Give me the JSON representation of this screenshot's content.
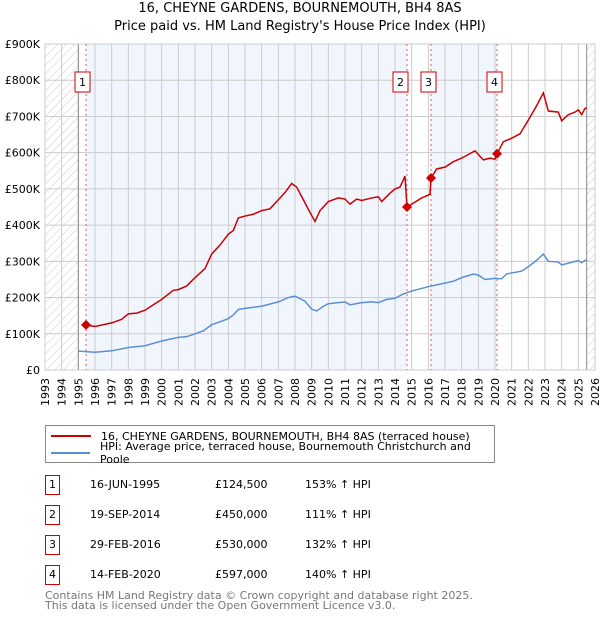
{
  "title": "16, CHEYNE GARDENS, BOURNEMOUTH, BH4 8AS",
  "subtitle": "Price paid vs. HM Land Registry's House Price Index (HPI)",
  "chart_data": {
    "type": "line",
    "xlim": [
      1993,
      2026
    ],
    "ylim": [
      0,
      900000
    ],
    "x_ticks": [
      "1993",
      "1994",
      "1995",
      "1996",
      "1997",
      "1998",
      "1999",
      "2000",
      "2001",
      "2002",
      "2003",
      "2004",
      "2005",
      "2006",
      "2007",
      "2008",
      "2009",
      "2010",
      "2011",
      "2012",
      "2013",
      "2014",
      "2015",
      "2016",
      "2017",
      "2018",
      "2019",
      "2020",
      "2021",
      "2022",
      "2023",
      "2024",
      "2025",
      "2026"
    ],
    "y_ticks": [
      {
        "v": 0,
        "label": "£0"
      },
      {
        "v": 100000,
        "label": "£100K"
      },
      {
        "v": 200000,
        "label": "£200K"
      },
      {
        "v": 300000,
        "label": "£300K"
      },
      {
        "v": 400000,
        "label": "£400K"
      },
      {
        "v": 500000,
        "label": "£500K"
      },
      {
        "v": 600000,
        "label": "£600K"
      },
      {
        "v": 700000,
        "label": "£700K"
      },
      {
        "v": 800000,
        "label": "£800K"
      },
      {
        "v": 900000,
        "label": "£900K"
      }
    ],
    "grid": true,
    "hatched_ranges": [
      [
        1993,
        1995.0
      ],
      [
        2025.5,
        2026
      ]
    ],
    "shaded_ranges": [
      [
        1995.46,
        2014.72
      ],
      [
        2016.16,
        2020.12
      ]
    ],
    "series": [
      {
        "name": "16, CHEYNE GARDENS, BOURNEMOUTH, BH4 8AS (terraced house)",
        "color": "#cc0000",
        "points": [
          [
            1995.46,
            124500
          ],
          [
            1996,
            120000
          ],
          [
            1997,
            130000
          ],
          [
            1997.6,
            140000
          ],
          [
            1998,
            155000
          ],
          [
            1998.5,
            157000
          ],
          [
            1999,
            165000
          ],
          [
            2000,
            195000
          ],
          [
            2000.7,
            220000
          ],
          [
            2001,
            222000
          ],
          [
            2001.5,
            232000
          ],
          [
            2002,
            255000
          ],
          [
            2002.6,
            280000
          ],
          [
            2003,
            320000
          ],
          [
            2003.5,
            345000
          ],
          [
            2004,
            375000
          ],
          [
            2004.3,
            385000
          ],
          [
            2004.6,
            420000
          ],
          [
            2005,
            425000
          ],
          [
            2005.5,
            430000
          ],
          [
            2006,
            440000
          ],
          [
            2006.5,
            445000
          ],
          [
            2007,
            470000
          ],
          [
            2007.4,
            490000
          ],
          [
            2007.8,
            515000
          ],
          [
            2008.1,
            505000
          ],
          [
            2008.5,
            470000
          ],
          [
            2008.9,
            435000
          ],
          [
            2009.2,
            410000
          ],
          [
            2009.5,
            440000
          ],
          [
            2010,
            465000
          ],
          [
            2010.6,
            475000
          ],
          [
            2011,
            472000
          ],
          [
            2011.3,
            458000
          ],
          [
            2011.7,
            472000
          ],
          [
            2012,
            468000
          ],
          [
            2012.6,
            475000
          ],
          [
            2013,
            478000
          ],
          [
            2013.2,
            465000
          ],
          [
            2013.7,
            488000
          ],
          [
            2014,
            500000
          ],
          [
            2014.3,
            505000
          ],
          [
            2014.6,
            535000
          ],
          [
            2014.72,
            450000
          ],
          [
            2015,
            458000
          ],
          [
            2015.6,
            475000
          ],
          [
            2016.1,
            485000
          ],
          [
            2016.16,
            530000
          ],
          [
            2016.5,
            555000
          ],
          [
            2017,
            560000
          ],
          [
            2017.5,
            575000
          ],
          [
            2018,
            585000
          ],
          [
            2018.4,
            595000
          ],
          [
            2018.8,
            605000
          ],
          [
            2019.3,
            580000
          ],
          [
            2019.7,
            585000
          ],
          [
            2020.0,
            582000
          ],
          [
            2020.12,
            597000
          ],
          [
            2020.5,
            630000
          ],
          [
            2021,
            640000
          ],
          [
            2021.5,
            652000
          ],
          [
            2022,
            690000
          ],
          [
            2022.5,
            730000
          ],
          [
            2022.9,
            765000
          ],
          [
            2023.2,
            715000
          ],
          [
            2023.8,
            712000
          ],
          [
            2024,
            688000
          ],
          [
            2024.4,
            705000
          ],
          [
            2024.8,
            712000
          ],
          [
            2025.0,
            718000
          ],
          [
            2025.2,
            705000
          ],
          [
            2025.4,
            722000
          ],
          [
            2025.5,
            724000
          ]
        ]
      },
      {
        "name": "HPI: Average price, terraced house, Bournemouth Christchurch and Poole",
        "color": "#5b8fd4",
        "points": [
          [
            1995,
            52000
          ],
          [
            1996,
            49000
          ],
          [
            1997,
            53000
          ],
          [
            1998,
            62000
          ],
          [
            1999,
            67000
          ],
          [
            2000,
            80000
          ],
          [
            2001,
            90000
          ],
          [
            2001.5,
            92000
          ],
          [
            2002,
            100000
          ],
          [
            2002.5,
            108000
          ],
          [
            2003,
            125000
          ],
          [
            2003.5,
            133000
          ],
          [
            2004,
            142000
          ],
          [
            2004.3,
            152000
          ],
          [
            2004.6,
            167000
          ],
          [
            2005,
            170000
          ],
          [
            2006,
            176000
          ],
          [
            2007,
            188000
          ],
          [
            2007.6,
            200000
          ],
          [
            2008,
            204000
          ],
          [
            2008.6,
            190000
          ],
          [
            2009,
            168000
          ],
          [
            2009.3,
            163000
          ],
          [
            2009.7,
            176000
          ],
          [
            2010,
            183000
          ],
          [
            2011,
            188000
          ],
          [
            2011.3,
            180000
          ],
          [
            2012,
            186000
          ],
          [
            2012.6,
            188000
          ],
          [
            2013,
            186000
          ],
          [
            2013.5,
            195000
          ],
          [
            2014,
            198000
          ],
          [
            2014.5,
            210000
          ],
          [
            2015,
            218000
          ],
          [
            2016,
            230000
          ],
          [
            2016.5,
            235000
          ],
          [
            2017,
            240000
          ],
          [
            2017.5,
            245000
          ],
          [
            2018,
            255000
          ],
          [
            2018.7,
            265000
          ],
          [
            2019,
            262000
          ],
          [
            2019.4,
            250000
          ],
          [
            2020,
            253000
          ],
          [
            2020.4,
            252000
          ],
          [
            2020.7,
            265000
          ],
          [
            2021,
            268000
          ],
          [
            2021.6,
            273000
          ],
          [
            2022,
            285000
          ],
          [
            2022.5,
            303000
          ],
          [
            2022.9,
            320000
          ],
          [
            2023.2,
            300000
          ],
          [
            2023.8,
            298000
          ],
          [
            2024,
            290000
          ],
          [
            2024.5,
            296000
          ],
          [
            2025,
            302000
          ],
          [
            2025.2,
            296000
          ],
          [
            2025.5,
            305000
          ]
        ]
      }
    ],
    "sales": [
      {
        "n": "1",
        "x": 1995.46,
        "price": 124500
      },
      {
        "n": "2",
        "x": 2014.72,
        "price": 450000
      },
      {
        "n": "3",
        "x": 2016.16,
        "price": 530000
      },
      {
        "n": "4",
        "x": 2020.12,
        "price": 597000
      }
    ]
  },
  "legend": [
    {
      "label": "16, CHEYNE GARDENS, BOURNEMOUTH, BH4 8AS (terraced house)",
      "color": "#cc0000"
    },
    {
      "label": "HPI: Average price, terraced house, Bournemouth Christchurch and Poole",
      "color": "#5b8fd4"
    }
  ],
  "transactions": [
    {
      "n": "1",
      "date": "16-JUN-1995",
      "price": "£124,500",
      "hpi": "153% ↑ HPI"
    },
    {
      "n": "2",
      "date": "19-SEP-2014",
      "price": "£450,000",
      "hpi": "111% ↑ HPI"
    },
    {
      "n": "3",
      "date": "29-FEB-2016",
      "price": "£530,000",
      "hpi": "132% ↑ HPI"
    },
    {
      "n": "4",
      "date": "14-FEB-2020",
      "price": "£597,000",
      "hpi": "140% ↑ HPI"
    }
  ],
  "footer": [
    "Contains HM Land Registry data © Crown copyright and database right 2025.",
    "This data is licensed under the Open Government Licence v3.0."
  ]
}
